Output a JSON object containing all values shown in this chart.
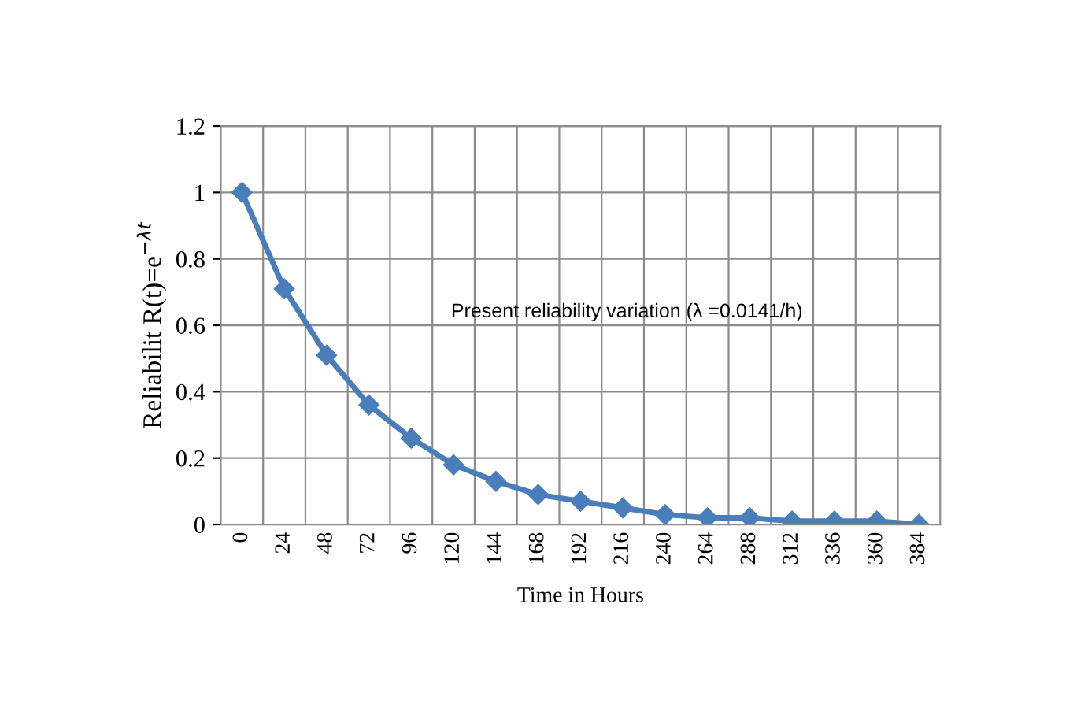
{
  "chart_data": {
    "type": "line",
    "xlabel": "Time in Hours",
    "ylabel": "Reliabilit R(t)=e$^{−λt}$",
    "categories": [
      "0",
      "24",
      "48",
      "72",
      "96",
      "120",
      "144",
      "168",
      "192",
      "216",
      "240",
      "264",
      "288",
      "312",
      "336",
      "360",
      "384"
    ],
    "series": [
      {
        "color": "#4a7ebb",
        "values": [
          1,
          0.71,
          0.51,
          0.36,
          0.26,
          0.18,
          0.13,
          0.09,
          0.07,
          0.05,
          0.03,
          0.02,
          0.02,
          0.01,
          0.01,
          0.01,
          0.0
        ]
      }
    ],
    "ylim": [
      0,
      1.2
    ],
    "yticks": [
      0,
      0.2,
      0.4,
      0.6,
      0.8,
      1,
      1.2
    ],
    "grid": true,
    "marker": "diamond",
    "line_style": "solid",
    "legend": false,
    "annotations": [
      "Present reliability variation (λ =0.0141/h)"
    ]
  }
}
